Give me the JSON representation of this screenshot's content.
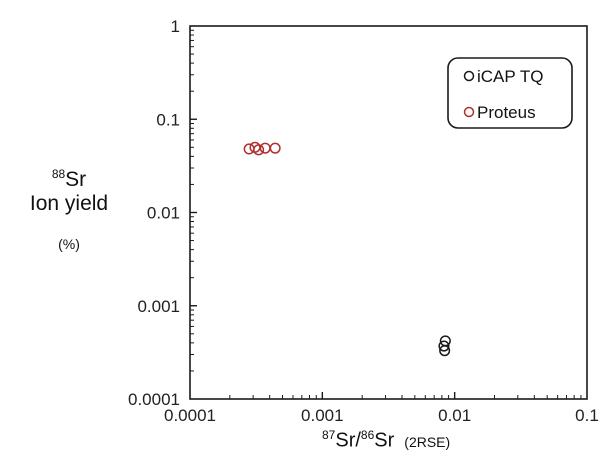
{
  "chart_data": {
    "type": "scatter",
    "xscale": "log",
    "yscale": "log",
    "xlim": [
      0.0001,
      0.1
    ],
    "ylim": [
      0.0001,
      1
    ],
    "xticks": [
      0.0001,
      0.001,
      0.01,
      0.1
    ],
    "xtick_labels": [
      "0.0001",
      "0.001",
      "0.01",
      "0.1"
    ],
    "yticks": [
      0.0001,
      0.001,
      0.01,
      0.1,
      1
    ],
    "ytick_labels": [
      "0.0001",
      "0.001",
      "0.01",
      "0.1",
      "1"
    ],
    "xlabel": {
      "sup1": "87",
      "mid": "Sr/",
      "sup2": "86",
      "end": "Sr",
      "note": "(2RSE)"
    },
    "ylabel": {
      "sup": "88",
      "line1": "Sr",
      "line2": "Ion yield",
      "line3": "(%)"
    },
    "grid": false,
    "legend_position": "top-right",
    "series": [
      {
        "name": "iCAP TQ",
        "color": "#1a1a1a",
        "points": [
          [
            0.0085,
            0.00042
          ],
          [
            0.0083,
            0.00037
          ],
          [
            0.0084,
            0.00033
          ]
        ]
      },
      {
        "name": "Proteus",
        "color": "#b03030",
        "points": [
          [
            0.00028,
            0.048
          ],
          [
            0.00031,
            0.05
          ],
          [
            0.00033,
            0.047
          ],
          [
            0.00037,
            0.049
          ],
          [
            0.00044,
            0.049
          ]
        ]
      }
    ]
  }
}
